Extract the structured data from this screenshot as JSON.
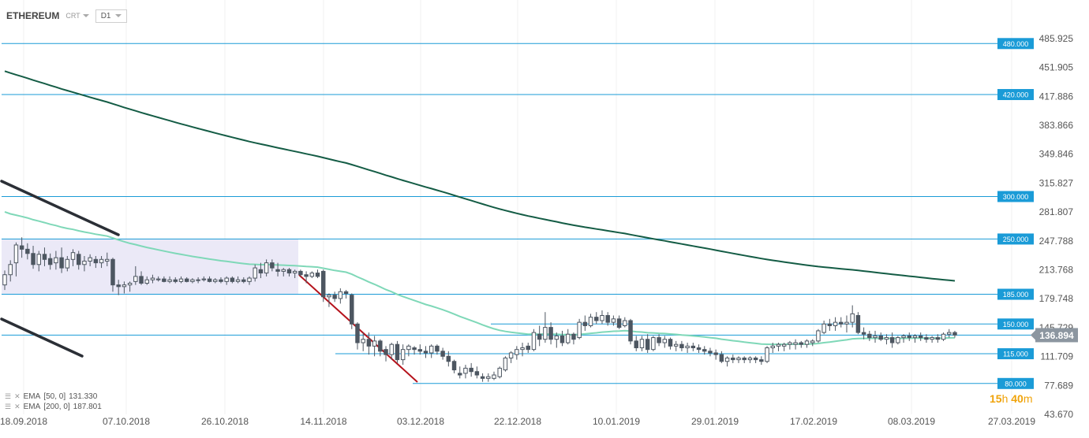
{
  "header": {
    "symbol": "ETHEREUM",
    "chart_type": "CRT",
    "timeframe": "D1"
  },
  "legend": [
    {
      "label": "EMA",
      "params": "[50, 0]",
      "value": "131.330"
    },
    {
      "label": "EMA",
      "params": "[200, 0]",
      "value": "187.801"
    }
  ],
  "countdown": {
    "hours": "15",
    "h_unit": "h",
    "minutes": "40",
    "m_unit": "m"
  },
  "colors": {
    "bull": "#ffffff",
    "bear": "#4d5661",
    "level": "#1a9bd7",
    "ema50": "#7fd8b8",
    "ema200": "#145c45",
    "trend_red": "#b5121b",
    "channel": "#2b2f36",
    "range_fill": "#ebe9f7",
    "price_tag": "#8c96a0"
  },
  "chart_data": {
    "type": "candlestick",
    "instrument": "ETHEREUM",
    "timeframe": "D1",
    "ylim": [
      43.67,
      500
    ],
    "y_ticks": [
      "485.925",
      "451.905",
      "417.886",
      "383.866",
      "349.846",
      "315.827",
      "281.807",
      "247.788",
      "213.768",
      "179.748",
      "145.729",
      "111.709",
      "77.689",
      "43.670"
    ],
    "x_ticks": [
      "18.09.2018",
      "07.10.2018",
      "26.10.2018",
      "14.11.2018",
      "03.12.2018",
      "22.12.2018",
      "10.01.2019",
      "29.01.2019",
      "17.02.2019",
      "08.03.2019",
      "27.03.2019"
    ],
    "current_price": "136.894",
    "levels": [
      {
        "label": "480.000",
        "value": 480,
        "from": "18.09.2018"
      },
      {
        "label": "420.000",
        "value": 420,
        "from": "18.09.2018"
      },
      {
        "label": "300.000",
        "value": 300,
        "from": "18.09.2018"
      },
      {
        "label": "250.000",
        "value": 250,
        "from": "18.09.2018"
      },
      {
        "label": "185.000",
        "value": 185,
        "from": "18.09.2018"
      },
      {
        "label": "150.000",
        "value": 150,
        "from": "22.12.2018"
      },
      {
        "label": "115.000",
        "value": 115,
        "from": "18.11.2018"
      },
      {
        "label": "80.000",
        "value": 80,
        "from": "29.11.2018"
      }
    ],
    "range_box": {
      "from": "18.09.2018",
      "to": "14.11.2018",
      "low": 185,
      "high": 250
    },
    "channel_lines": [
      {
        "from": [
          0,
          294
        ],
        "to": [
          40,
          257
        ]
      },
      {
        "from": [
          0,
          175
        ],
        "to": [
          13,
          133
        ]
      }
    ],
    "trend_line": {
      "from": [
        57,
        210
      ],
      "to": [
        76,
        84
      ]
    },
    "ohlc_mode": "relative",
    "ohlc": [
      [
        196,
        213,
        190,
        208
      ],
      [
        208,
        225,
        200,
        220
      ],
      [
        222,
        246,
        206,
        243
      ],
      [
        242,
        252,
        228,
        238
      ],
      [
        238,
        245,
        226,
        233
      ],
      [
        233,
        242,
        215,
        220
      ],
      [
        220,
        236,
        212,
        232
      ],
      [
        232,
        240,
        218,
        226
      ],
      [
        227,
        233,
        214,
        220
      ],
      [
        222,
        236,
        214,
        228
      ],
      [
        228,
        240,
        210,
        216
      ],
      [
        216,
        230,
        212,
        226
      ],
      [
        226,
        238,
        218,
        234
      ],
      [
        232,
        236,
        214,
        220
      ],
      [
        220,
        230,
        212,
        224
      ],
      [
        224,
        232,
        218,
        228
      ],
      [
        226,
        230,
        216,
        222
      ],
      [
        222,
        230,
        216,
        226
      ],
      [
        224,
        234,
        218,
        226
      ],
      [
        226,
        228,
        188,
        196
      ],
      [
        196,
        202,
        184,
        194
      ],
      [
        194,
        200,
        186,
        196
      ],
      [
        196,
        200,
        188,
        198
      ],
      [
        200,
        218,
        196,
        206
      ],
      [
        206,
        212,
        196,
        198
      ],
      [
        198,
        206,
        196,
        202
      ],
      [
        202,
        208,
        198,
        204
      ],
      [
        202,
        206,
        200,
        203
      ],
      [
        203,
        206,
        199,
        200
      ],
      [
        200,
        206,
        198,
        202
      ],
      [
        202,
        205,
        198,
        200
      ],
      [
        200,
        206,
        198,
        203
      ],
      [
        203,
        205,
        199,
        200
      ],
      [
        200,
        204,
        198,
        202
      ],
      [
        202,
        205,
        198,
        202
      ],
      [
        202,
        206,
        200,
        203
      ],
      [
        203,
        206,
        199,
        200
      ],
      [
        200,
        204,
        198,
        202
      ],
      [
        202,
        205,
        198,
        200
      ],
      [
        200,
        206,
        196,
        204
      ],
      [
        204,
        206,
        198,
        200
      ],
      [
        200,
        206,
        198,
        202
      ],
      [
        202,
        205,
        198,
        200
      ],
      [
        200,
        206,
        196,
        204
      ],
      [
        204,
        220,
        200,
        216
      ],
      [
        214,
        222,
        204,
        210
      ],
      [
        210,
        226,
        206,
        222
      ],
      [
        222,
        226,
        212,
        216
      ],
      [
        214,
        222,
        206,
        212
      ],
      [
        212,
        216,
        206,
        214
      ],
      [
        214,
        216,
        206,
        210
      ],
      [
        210,
        214,
        204,
        212
      ],
      [
        212,
        214,
        206,
        208
      ],
      [
        208,
        212,
        198,
        206
      ],
      [
        206,
        212,
        204,
        210
      ],
      [
        210,
        214,
        204,
        206
      ],
      [
        212,
        214,
        176,
        182
      ],
      [
        182,
        186,
        170,
        184
      ],
      [
        184,
        188,
        176,
        180
      ],
      [
        180,
        192,
        174,
        188
      ],
      [
        188,
        190,
        180,
        186
      ],
      [
        184,
        186,
        144,
        150
      ],
      [
        150,
        152,
        120,
        128
      ],
      [
        128,
        140,
        118,
        132
      ],
      [
        132,
        140,
        114,
        124
      ],
      [
        124,
        136,
        112,
        130
      ],
      [
        130,
        132,
        112,
        118
      ],
      [
        120,
        124,
        106,
        114
      ],
      [
        114,
        128,
        108,
        126
      ],
      [
        126,
        130,
        104,
        108
      ],
      [
        108,
        126,
        102,
        120
      ],
      [
        120,
        126,
        112,
        124
      ],
      [
        122,
        124,
        114,
        120
      ],
      [
        120,
        126,
        114,
        118
      ],
      [
        118,
        124,
        110,
        116
      ],
      [
        116,
        126,
        110,
        124
      ],
      [
        124,
        126,
        114,
        118
      ],
      [
        118,
        122,
        108,
        112
      ],
      [
        112,
        118,
        100,
        106
      ],
      [
        106,
        108,
        92,
        96
      ],
      [
        92,
        100,
        86,
        90
      ],
      [
        92,
        102,
        86,
        98
      ],
      [
        98,
        104,
        88,
        94
      ],
      [
        94,
        100,
        86,
        90
      ],
      [
        88,
        92,
        82,
        86
      ],
      [
        86,
        92,
        82,
        88
      ],
      [
        86,
        94,
        84,
        90
      ],
      [
        88,
        100,
        86,
        98
      ],
      [
        96,
        112,
        94,
        110
      ],
      [
        110,
        118,
        104,
        116
      ],
      [
        114,
        124,
        108,
        120
      ],
      [
        120,
        128,
        112,
        122
      ],
      [
        124,
        128,
        116,
        120
      ],
      [
        120,
        144,
        118,
        140
      ],
      [
        138,
        148,
        124,
        132
      ],
      [
        132,
        164,
        128,
        146
      ],
      [
        146,
        152,
        126,
        132
      ],
      [
        132,
        140,
        122,
        136
      ],
      [
        136,
        142,
        124,
        128
      ],
      [
        128,
        144,
        126,
        138
      ],
      [
        138,
        140,
        126,
        132
      ],
      [
        134,
        156,
        132,
        152
      ],
      [
        152,
        160,
        142,
        148
      ],
      [
        148,
        162,
        146,
        158
      ],
      [
        158,
        164,
        150,
        154
      ],
      [
        154,
        166,
        150,
        160
      ],
      [
        160,
        164,
        148,
        152
      ],
      [
        152,
        160,
        148,
        156
      ],
      [
        156,
        160,
        144,
        146
      ],
      [
        148,
        158,
        146,
        154
      ],
      [
        154,
        156,
        126,
        130
      ],
      [
        130,
        136,
        118,
        122
      ],
      [
        122,
        136,
        118,
        132
      ],
      [
        132,
        138,
        116,
        120
      ],
      [
        120,
        136,
        118,
        134
      ],
      [
        134,
        138,
        124,
        128
      ],
      [
        128,
        136,
        122,
        132
      ],
      [
        132,
        134,
        120,
        124
      ],
      [
        124,
        130,
        118,
        126
      ],
      [
        126,
        130,
        118,
        122
      ],
      [
        122,
        128,
        116,
        124
      ],
      [
        124,
        128,
        118,
        122
      ],
      [
        122,
        126,
        116,
        120
      ],
      [
        120,
        124,
        114,
        118
      ],
      [
        118,
        122,
        112,
        116
      ],
      [
        116,
        120,
        108,
        114
      ],
      [
        114,
        118,
        104,
        106
      ],
      [
        106,
        112,
        100,
        110
      ],
      [
        110,
        114,
        104,
        108
      ],
      [
        108,
        112,
        104,
        110
      ],
      [
        110,
        112,
        104,
        108
      ],
      [
        108,
        112,
        104,
        110
      ],
      [
        110,
        112,
        104,
        108
      ],
      [
        108,
        112,
        102,
        106
      ],
      [
        106,
        124,
        104,
        122
      ],
      [
        122,
        128,
        116,
        124
      ],
      [
        124,
        128,
        118,
        126
      ],
      [
        124,
        128,
        118,
        126
      ],
      [
        126,
        130,
        120,
        128
      ],
      [
        126,
        132,
        120,
        128
      ],
      [
        128,
        130,
        122,
        126
      ],
      [
        126,
        132,
        122,
        130
      ],
      [
        128,
        132,
        124,
        130
      ],
      [
        130,
        144,
        128,
        142
      ],
      [
        140,
        154,
        138,
        150
      ],
      [
        150,
        156,
        142,
        148
      ],
      [
        148,
        158,
        142,
        152
      ],
      [
        152,
        158,
        146,
        150
      ],
      [
        150,
        160,
        140,
        152
      ],
      [
        152,
        172,
        146,
        162
      ],
      [
        160,
        164,
        138,
        140
      ],
      [
        140,
        146,
        132,
        138
      ],
      [
        138,
        142,
        130,
        134
      ],
      [
        134,
        142,
        128,
        136
      ],
      [
        136,
        140,
        130,
        132
      ],
      [
        132,
        138,
        126,
        134
      ],
      [
        134,
        140,
        122,
        128
      ],
      [
        128,
        136,
        126,
        134
      ],
      [
        134,
        138,
        128,
        136
      ],
      [
        136,
        140,
        130,
        134
      ],
      [
        134,
        138,
        128,
        136
      ],
      [
        136,
        140,
        130,
        134
      ],
      [
        134,
        138,
        128,
        132
      ],
      [
        132,
        136,
        128,
        134
      ],
      [
        134,
        138,
        128,
        132
      ],
      [
        132,
        140,
        130,
        138
      ],
      [
        138,
        144,
        134,
        140
      ],
      [
        140,
        142,
        134,
        137
      ]
    ],
    "ema": [
      {
        "name": "EMA [50, 0]",
        "value": "131.330"
      },
      {
        "name": "EMA [200, 0]",
        "value": "187.801"
      }
    ]
  }
}
